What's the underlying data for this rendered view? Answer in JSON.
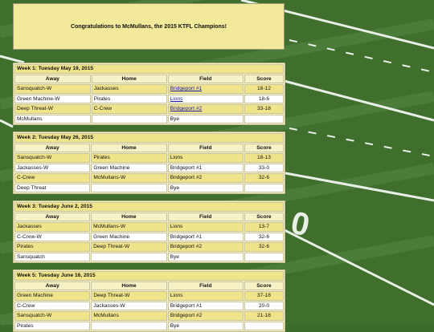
{
  "banner": "Congratulations to McMullans, the 2015 KTFL Champions!",
  "columns": [
    "Away",
    "Home",
    "Field",
    "Score"
  ],
  "weeks": [
    {
      "title": "Week 1: Tuesday May 19, 2015",
      "rows": [
        [
          "Sansquatch-W",
          "Jackasses",
          "Bridgeport #1",
          "18-12"
        ],
        [
          "Green Machine-W",
          "Pirates",
          "Lions",
          "18-6"
        ],
        [
          "Deep Threat-W",
          "C-Crew",
          "Bridgeport #2",
          "33-18"
        ],
        [
          "McMullans",
          null,
          "Bye",
          null
        ]
      ]
    },
    {
      "title": "Week 2: Tuesday May 26, 2015",
      "rows": [
        [
          "Sansquatch-W",
          "Pirates",
          "Lions",
          "18-13"
        ],
        [
          "Jackasses-W",
          "Green Machine",
          "Bridgeport #1",
          "33-0"
        ],
        [
          "C-Crew",
          "McMullans-W",
          "Bridgeport #2",
          "32-6"
        ],
        [
          "Deep Threat",
          null,
          "Bye",
          null
        ]
      ]
    },
    {
      "title": "Week 3: Tuesday June 2, 2015",
      "rows": [
        [
          "Jackasses",
          "McMullans-W",
          "Lions",
          "13-7"
        ],
        [
          "C-Crew-W",
          "Green Machine",
          "Bridgeport #1",
          "32-6"
        ],
        [
          "Pirates",
          "Deep Threat-W",
          "Bridgeport #2",
          "32-6"
        ],
        [
          "Sansquatch",
          null,
          "Bye",
          null
        ]
      ]
    },
    {
      "title": "Week 5: Tuesday June 16, 2015",
      "rows": [
        [
          "Green Machine",
          "Deep Threat-W",
          "Lions",
          "37-18"
        ],
        [
          "C-Crew",
          "Jackasses-W",
          "Bridgeport #1",
          "20-0"
        ],
        [
          "Sansquatch-W",
          "McMullans",
          "Bridgeport #2",
          "21-18"
        ],
        [
          "Pirates",
          null,
          "Bye",
          null
        ]
      ]
    }
  ]
}
